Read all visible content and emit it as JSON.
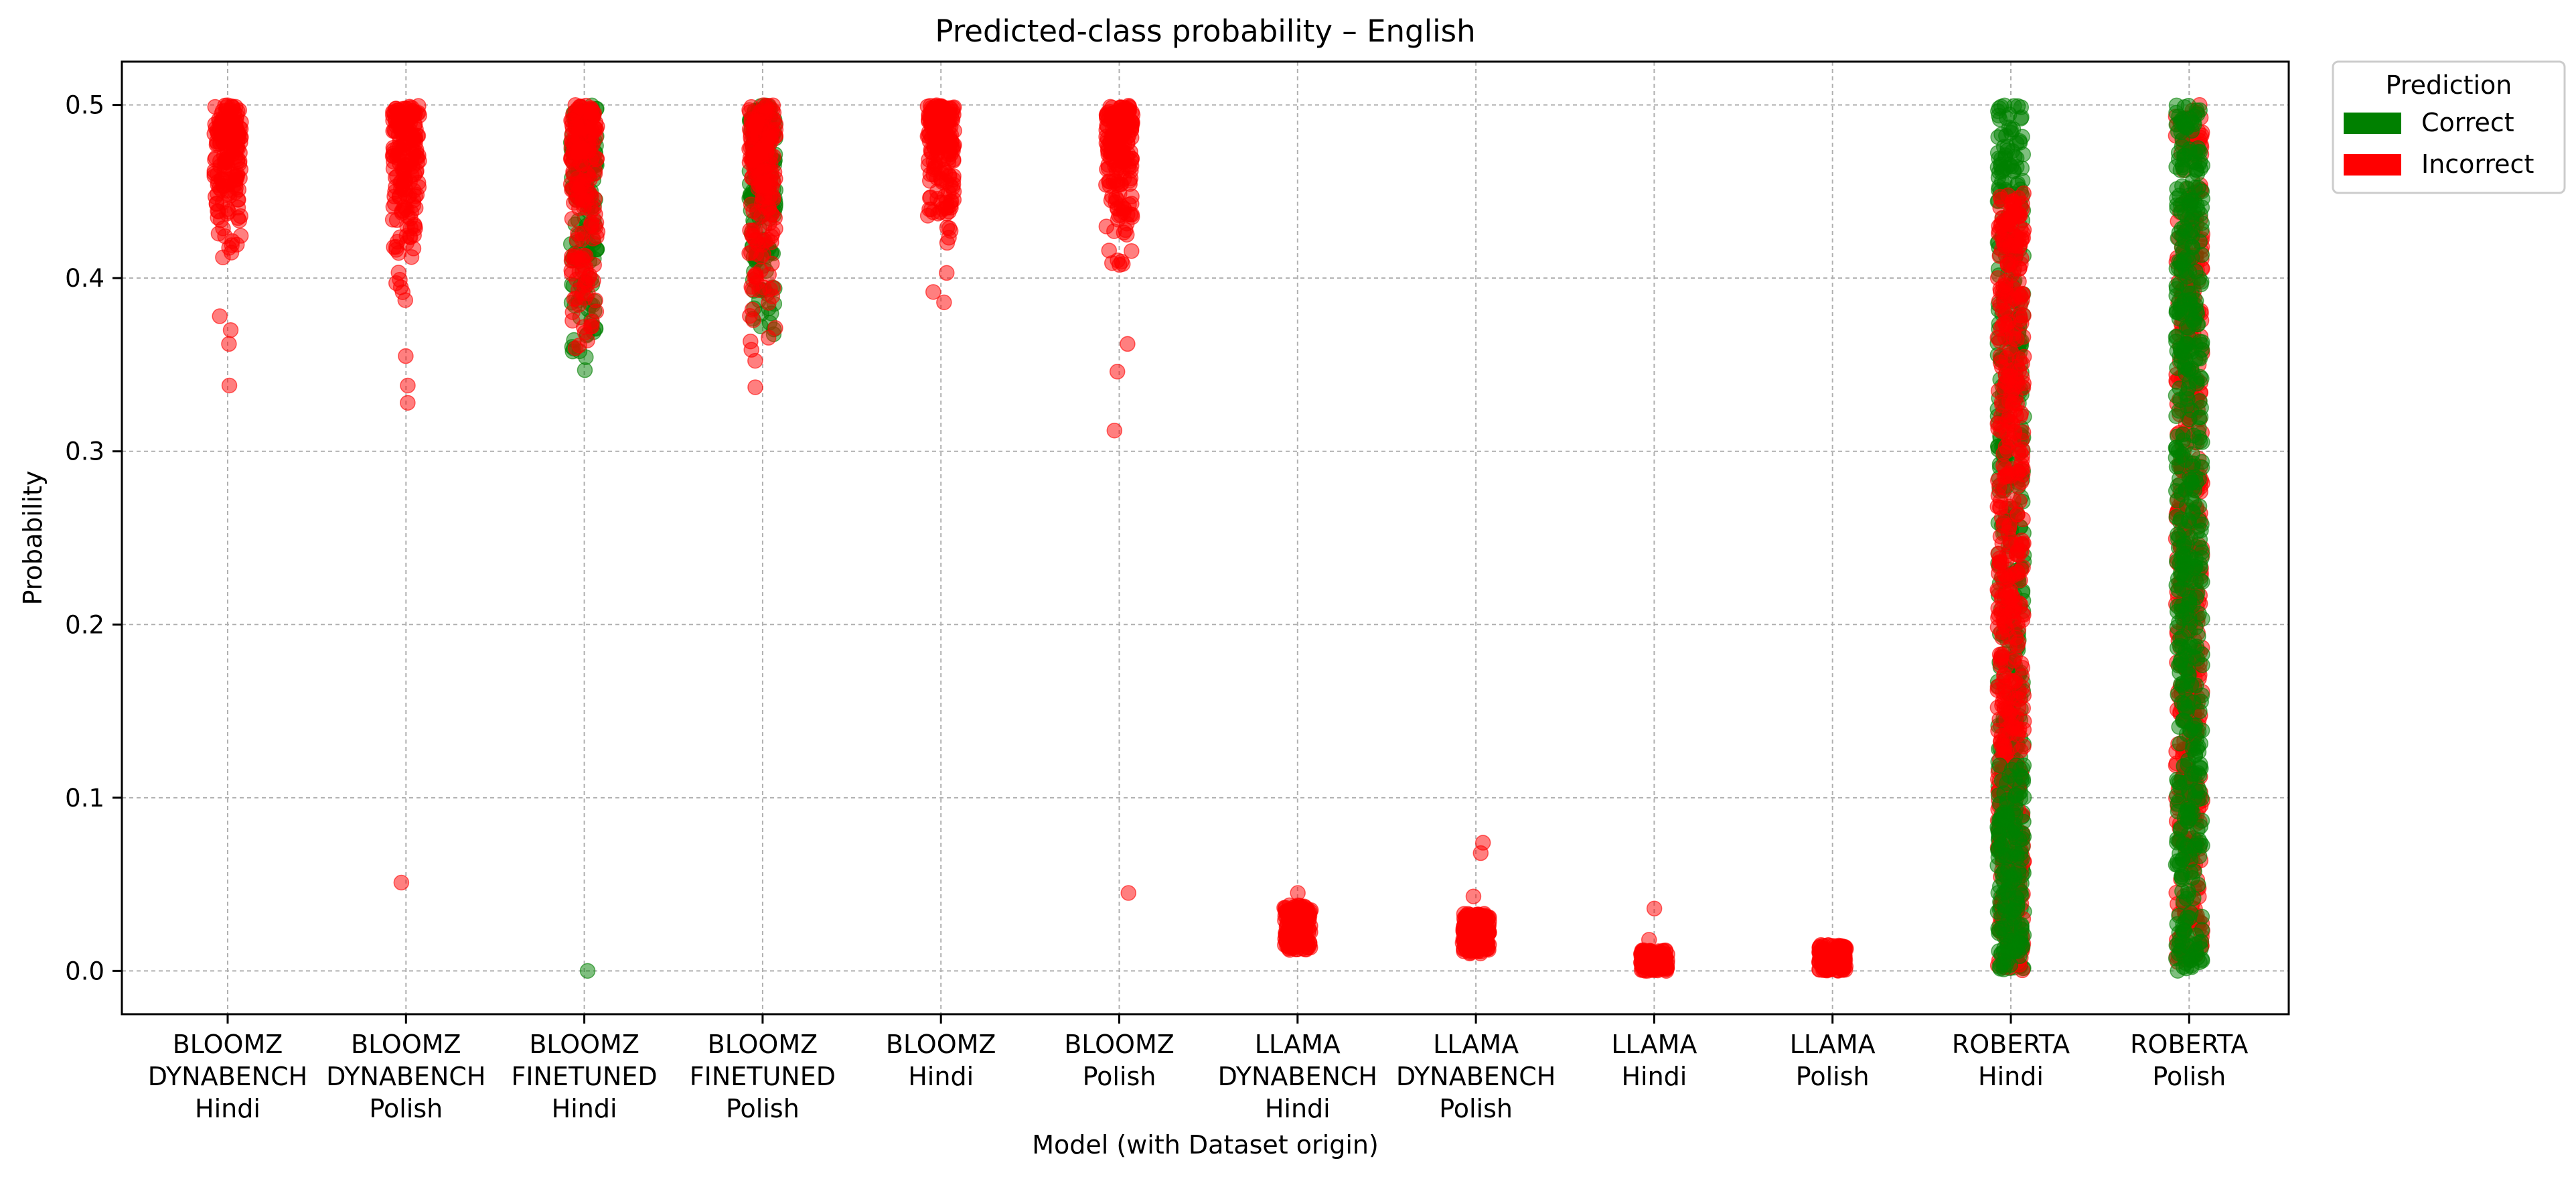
{
  "chart_data": {
    "type": "scatter",
    "title": "Predicted-class probability – English",
    "xlabel": "Model (with Dataset origin)",
    "ylabel": "Probability",
    "ylim": [
      -0.025,
      0.525
    ],
    "yticks": [
      "0.0",
      "0.1",
      "0.2",
      "0.3",
      "0.4",
      "0.5"
    ],
    "grid": true,
    "legend": {
      "title": "Prediction",
      "placement": "outside-top-right",
      "entries": [
        {
          "label": "Correct",
          "color": "#008000"
        },
        {
          "label": "Incorrect",
          "color": "#ff0000"
        }
      ]
    },
    "categories": [
      {
        "lines": [
          "BLOOMZ",
          "DYNABENCH",
          "Hindi"
        ]
      },
      {
        "lines": [
          "BLOOMZ",
          "DYNABENCH",
          "Polish"
        ]
      },
      {
        "lines": [
          "BLOOMZ",
          "FINETUNED",
          "Hindi"
        ]
      },
      {
        "lines": [
          "BLOOMZ",
          "FINETUNED",
          "Polish"
        ]
      },
      {
        "lines": [
          "BLOOMZ",
          "Hindi"
        ]
      },
      {
        "lines": [
          "BLOOMZ",
          "Polish"
        ]
      },
      {
        "lines": [
          "LLAMA",
          "DYNABENCH",
          "Hindi"
        ]
      },
      {
        "lines": [
          "LLAMA",
          "DYNABENCH",
          "Polish"
        ]
      },
      {
        "lines": [
          "LLAMA",
          "Hindi"
        ]
      },
      {
        "lines": [
          "LLAMA",
          "Polish"
        ]
      },
      {
        "lines": [
          "ROBERTA",
          "Hindi"
        ]
      },
      {
        "lines": [
          "ROBERTA",
          "Polish"
        ]
      }
    ],
    "distributions": [
      {
        "red": [
          0.4,
          0.5
        ],
        "green": null,
        "red_outliers": [
          0.338,
          0.362,
          0.37,
          0.378
        ],
        "green_outliers": []
      },
      {
        "red": [
          0.38,
          0.5
        ],
        "green": null,
        "red_outliers": [
          0.051,
          0.328,
          0.338,
          0.355
        ],
        "green_outliers": []
      },
      {
        "red": [
          0.335,
          0.5
        ],
        "green": [
          0.335,
          0.5
        ],
        "red_outliers": [],
        "green_outliers": [
          0.0
        ]
      },
      {
        "red": [
          0.34,
          0.5
        ],
        "green": [
          0.36,
          0.5
        ],
        "red_outliers": [
          0.337
        ],
        "green_outliers": []
      },
      {
        "red": [
          0.41,
          0.5
        ],
        "green": null,
        "red_outliers": [
          0.386,
          0.392,
          0.403
        ],
        "green_outliers": []
      },
      {
        "red": [
          0.4,
          0.5
        ],
        "green": null,
        "red_outliers": [
          0.045,
          0.312,
          0.346,
          0.362
        ],
        "green_outliers": []
      },
      {
        "red": [
          0.012,
          0.038
        ],
        "green": null,
        "red_outliers": [
          0.045
        ],
        "green_outliers": []
      },
      {
        "red": [
          0.01,
          0.033
        ],
        "green": null,
        "red_outliers": [
          0.043,
          0.068,
          0.074
        ],
        "green_outliers": []
      },
      {
        "red": [
          0.0,
          0.012
        ],
        "green": null,
        "red_outliers": [
          0.018,
          0.036
        ],
        "green_outliers": []
      },
      {
        "red": [
          0.0,
          0.015
        ],
        "green": null,
        "red_outliers": [],
        "green_outliers": []
      },
      {
        "red": [
          0.0,
          0.45
        ],
        "green": [
          0.0,
          0.5
        ],
        "red_outliers": [],
        "green_outliers": []
      },
      {
        "red": [
          0.0,
          0.5
        ],
        "green": [
          0.0,
          0.5
        ],
        "red_outliers": [],
        "green_outliers": []
      }
    ]
  }
}
